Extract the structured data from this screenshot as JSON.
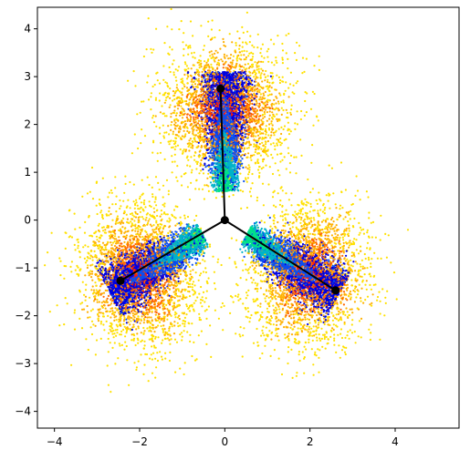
{
  "chart_data": {
    "type": "scatter",
    "title": "",
    "xlabel": "",
    "ylabel": "",
    "xlim": [
      -4.4,
      5.5
    ],
    "ylim": [
      -4.35,
      4.45
    ],
    "xticks": [
      -4,
      -2,
      0,
      2,
      4
    ],
    "yticks": [
      -4,
      -3,
      -2,
      -1,
      0,
      1,
      2,
      3,
      4
    ],
    "xtick_labels": [
      "−4",
      "−2",
      "0",
      "2",
      "4"
    ],
    "ytick_labels": [
      "−4",
      "−3",
      "−2",
      "−1",
      "0",
      "1",
      "2",
      "3",
      "4"
    ],
    "grid": false,
    "legend": "none",
    "colormap": [
      "#00e08a",
      "#00b3c8",
      "#0a4ff0",
      "#0000e0",
      "#ff1a00",
      "#ff6400",
      "#ffb000",
      "#ffe100"
    ],
    "arm_angles_deg": [
      90,
      210,
      330
    ],
    "scatter_points_approx": 18000,
    "overlay": {
      "color": "#000000",
      "center": [
        0.0,
        0.0
      ],
      "endpoints": [
        {
          "x": -0.1,
          "y": 2.75
        },
        {
          "x": -2.45,
          "y": -1.27
        },
        {
          "x": 2.6,
          "y": -1.47
        }
      ]
    }
  }
}
